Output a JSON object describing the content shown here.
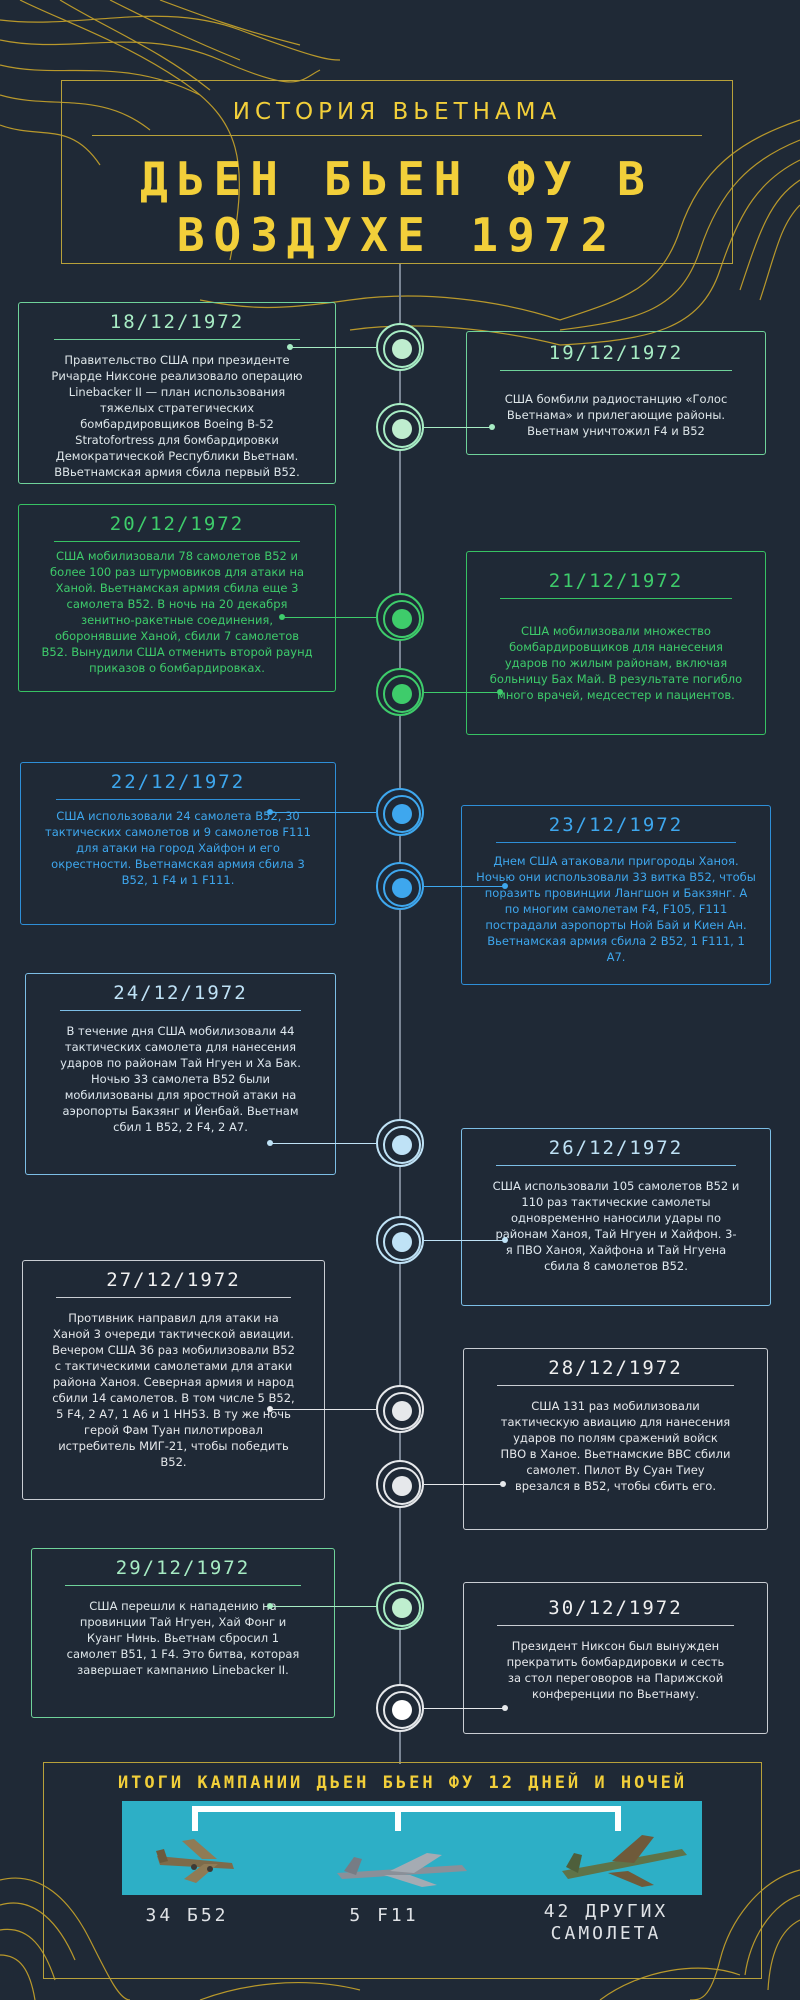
{
  "header": {
    "subtitle": "ИСТОРИЯ ВЬЕТНАМА",
    "title_line1": "ДЬЕН БЬЕН ФУ В",
    "title_line2": "ВОЗДУХЕ 1972"
  },
  "events": [
    {
      "date": "18/12/1972",
      "text": "Правительство США при президенте Ричарде Никсоне реализовало операцию Linebacker II — план использования тяжелых стратегических бомбардировщиков Boeing B-52 Stratofortress для бомбардировки Демократической Республики Вьетнам. ВВьетнамская армия сбила первый B52."
    },
    {
      "date": "19/12/1972",
      "text": "США бомбили радиостанцию «Голос Вьетнама» и прилегающие районы. Вьетнам уничтожил F4 и B52"
    },
    {
      "date": "20/12/1972",
      "text": "США мобилизовали 78 самолетов B52 и более 100 раз штурмовиков для атаки на Ханой. Вьетнамская армия сбила еще 3 самолета B52. В ночь на 20 декабря зенитно-ракетные соединения, оборонявшие Ханой, сбили 7 самолетов B52. Вынудили США отменить второй раунд приказов о бомбардировках."
    },
    {
      "date": "21/12/1972",
      "text": "США мобилизовали множество бомбардировщиков для нанесения ударов по жилым районам, включая больницу Бах Май. В результате погибло много врачей, медсестер и пациентов."
    },
    {
      "date": "22/12/1972",
      "text": "США использовали 24 самолета B52, 30 тактических самолетов и 9 самолетов F111 для атаки на город Хайфон и его окрестности. Вьетнамская армия сбила 3 B52, 1 F4 и 1 F111."
    },
    {
      "date": "23/12/1972",
      "text": "Днем США атаковали пригороды Ханоя. Ночью они использовали 33 витка B52, чтобы поразить провинции Лангшон и Бакзянг. А по многим самолетам F4, F105, F111 пострадали аэропорты Ной Бай и Киен Ан. Вьетнамская армия сбила 2 B52, 1 F111, 1 A7."
    },
    {
      "date": "24/12/1972",
      "text": "В течение дня США мобилизовали 44 тактических самолета для нанесения ударов по районам Тай Нгуен и Ха Бак. Ночью 33 самолета B52 были мобилизованы для яростной атаки на аэропорты Бакзянг и Йенбай. Вьетнам сбил 1 B52, 2 F4, 2 A7."
    },
    {
      "date": "26/12/1972",
      "text": "США использовали 105 самолетов B52 и 110 раз тактические самолеты одновременно наносили удары по районам Ханоя, Тай Нгуен и Хайфон. 3-я ПВО Ханоя, Хайфона и Тай Нгуена сбила 8 самолетов B52."
    },
    {
      "date": "27/12/1972",
      "text": "Противник направил для атаки на Ханой 3 очереди тактической авиации. Вечером США 36 раз мобилизовали B52 с тактическими самолетами для атаки района Ханоя. Северная армия и народ сбили 14 самолетов. В том числе 5 B52, 5 F4, 2 A7, 1 A6 и 1 HH53. В ту же ночь герой Фам Туан пилотировал истребитель МИГ-21, чтобы победить B52."
    },
    {
      "date": "28/12/1972",
      "text": "США 131 раз мобилизовали тактическую авиацию для нанесения ударов по полям сражений войск ПВО в Ханое. Вьетнамские ВВС сбили самолет. Пилот Ву Суан Тиеу врезался в B52, чтобы сбить его."
    },
    {
      "date": "29/12/1972",
      "text": "США перешли к нападению на провинции Тай Нгуен, Хай Фонг и Куанг Нинь. Вьетнам сбросил 1 самолет B51, 1 F4. Это битва, которая завершает кампанию Linebacker II."
    },
    {
      "date": "30/12/1972",
      "text": "Президент Никсон был вынужден прекратить бомбардировки и сесть за стол переговоров на Парижской конференции по Вьетнаму."
    }
  ],
  "summary": {
    "title": "ИТОГИ КАМПАНИИ ДЬЕН БЬЕН ФУ 12 ДНЕЙ И НОЧЕЙ",
    "count1": "34 Б52",
    "count2": "5 F11",
    "count3_line1": "42 ДРУГИХ",
    "count3_line2": "САМОЛЕТА"
  },
  "colors": {
    "background": "#1f2936",
    "gold": "#f2cf3a",
    "green_light": "#a7ecc4",
    "green": "#3ecc6b",
    "blue": "#3ea7ee",
    "light_blue": "#bfe2f6",
    "white": "#e6e8eb",
    "sky": "#2dafc6"
  }
}
